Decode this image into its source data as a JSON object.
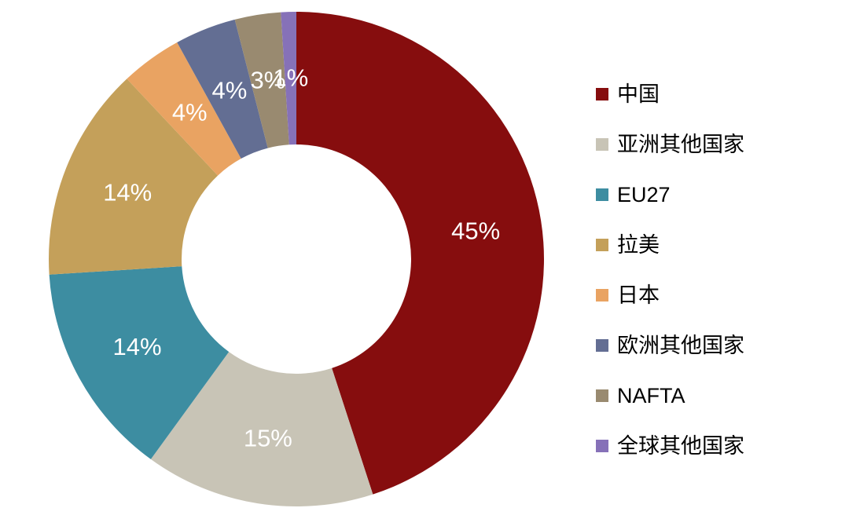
{
  "chart_data": {
    "type": "pie",
    "subtype": "donut",
    "title": "",
    "legend_position": "right",
    "direction": "clockwise",
    "start_angle_deg": 0,
    "inner_radius_ratio": 0.46,
    "label_color": "#FFFFFF",
    "categories": [
      "中国",
      "亚洲其他国家",
      "EU27",
      "拉美",
      "日本",
      "欧洲其他国家",
      "NAFTA",
      "全球其他国家"
    ],
    "values": [
      45,
      15,
      14,
      14,
      4,
      4,
      3,
      1
    ],
    "labels": [
      "45%",
      "15%",
      "14%",
      "14%",
      "4%",
      "4%",
      "3%",
      "1%"
    ],
    "unit": "%",
    "colors": [
      "#860D0E",
      "#C8C4B6",
      "#3D8DA1",
      "#C4A05A",
      "#E9A362",
      "#636E93",
      "#998A70",
      "#8671B8"
    ],
    "ids": [
      "china",
      "other-asia",
      "eu27",
      "latin-america",
      "japan",
      "other-europe",
      "nafta",
      "rest-of-world"
    ]
  }
}
